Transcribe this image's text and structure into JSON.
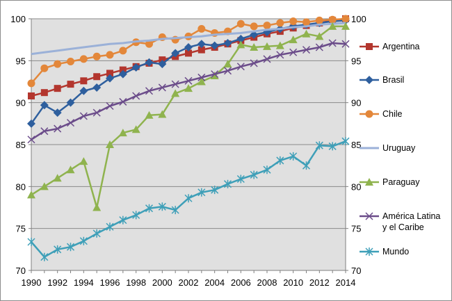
{
  "chart_data": {
    "type": "line",
    "title": "",
    "xlabel": "",
    "ylabel": "",
    "ylim": [
      70,
      100
    ],
    "yticks": [
      70,
      75,
      80,
      85,
      90,
      95,
      100
    ],
    "xticks": [
      1990,
      1992,
      1994,
      1996,
      1998,
      2000,
      2002,
      2004,
      2006,
      2008,
      2010,
      2012,
      2014
    ],
    "grid": "horizontal",
    "legend": "right",
    "plot_bg": "#e0e0e0",
    "x": [
      1990,
      1991,
      1992,
      1993,
      1994,
      1995,
      1996,
      1997,
      1998,
      1999,
      2000,
      2001,
      2002,
      2003,
      2004,
      2005,
      2006,
      2007,
      2008,
      2009,
      2010,
      2011,
      2012,
      2013,
      2014
    ],
    "series": [
      {
        "name": "Argentina",
        "color": "#b3362e",
        "marker": "square",
        "values": [
          90.8,
          91.2,
          91.7,
          92.2,
          92.6,
          93.1,
          93.5,
          93.9,
          94.3,
          94.7,
          95.1,
          95.5,
          95.9,
          96.3,
          96.6,
          97.0,
          97.4,
          97.8,
          98.2,
          98.5,
          98.9,
          99.2,
          99.5,
          99.8,
          100.0
        ]
      },
      {
        "name": "Brasil",
        "color": "#2e5f9e",
        "marker": "diamond",
        "values": [
          87.5,
          89.7,
          88.8,
          90.0,
          91.4,
          91.8,
          92.9,
          93.4,
          94.2,
          94.8,
          94.6,
          95.9,
          96.6,
          97.0,
          96.8,
          97.1,
          97.6,
          98.1,
          98.4,
          98.8,
          99.1,
          99.3,
          99.5,
          99.7,
          99.8
        ]
      },
      {
        "name": "Chile",
        "color": "#e3873a",
        "marker": "circle",
        "values": [
          92.3,
          94.1,
          94.6,
          94.9,
          95.2,
          95.5,
          95.7,
          96.2,
          97.2,
          97.0,
          97.8,
          97.5,
          97.9,
          98.8,
          98.3,
          98.5,
          99.4,
          99.1,
          99.2,
          99.5,
          99.7,
          99.6,
          99.8,
          99.9,
          100.0
        ]
      },
      {
        "name": "Uruguay",
        "color": "#9bb1d8",
        "marker": "none",
        "values": [
          95.8,
          96.0,
          96.2,
          96.4,
          96.6,
          96.8,
          97.0,
          97.1,
          97.3,
          97.4,
          97.6,
          97.7,
          97.8,
          97.9,
          98.1,
          98.2,
          98.3,
          98.5,
          98.7,
          98.8,
          99.0,
          99.1,
          99.3,
          99.4,
          99.5
        ]
      },
      {
        "name": "Paraguay",
        "color": "#8fb34e",
        "marker": "triangle",
        "values": [
          79.0,
          80.0,
          81.0,
          82.0,
          83.0,
          77.5,
          85.0,
          86.4,
          86.8,
          88.5,
          88.6,
          91.1,
          91.7,
          92.5,
          93.2,
          94.6,
          96.9,
          96.6,
          96.7,
          96.8,
          97.5,
          98.2,
          97.9,
          99.1,
          99.1
        ]
      },
      {
        "name": "América Latina y el Caribe",
        "color": "#6b4c8a",
        "marker": "x",
        "values": [
          85.6,
          86.6,
          86.9,
          87.6,
          88.4,
          88.8,
          89.6,
          90.1,
          90.8,
          91.4,
          91.8,
          92.2,
          92.6,
          93.0,
          93.4,
          93.8,
          94.3,
          94.7,
          95.2,
          95.7,
          96.0,
          96.3,
          96.6,
          97.1,
          97.0
        ]
      },
      {
        "name": "Mundo",
        "color": "#3e9fb8",
        "marker": "star",
        "values": [
          73.4,
          71.6,
          72.5,
          72.8,
          73.5,
          74.4,
          75.2,
          76.0,
          76.6,
          77.4,
          77.6,
          77.2,
          78.6,
          79.3,
          79.6,
          80.3,
          80.9,
          81.4,
          82.0,
          83.1,
          83.6,
          82.5,
          84.9,
          84.8,
          85.4
        ]
      }
    ]
  }
}
